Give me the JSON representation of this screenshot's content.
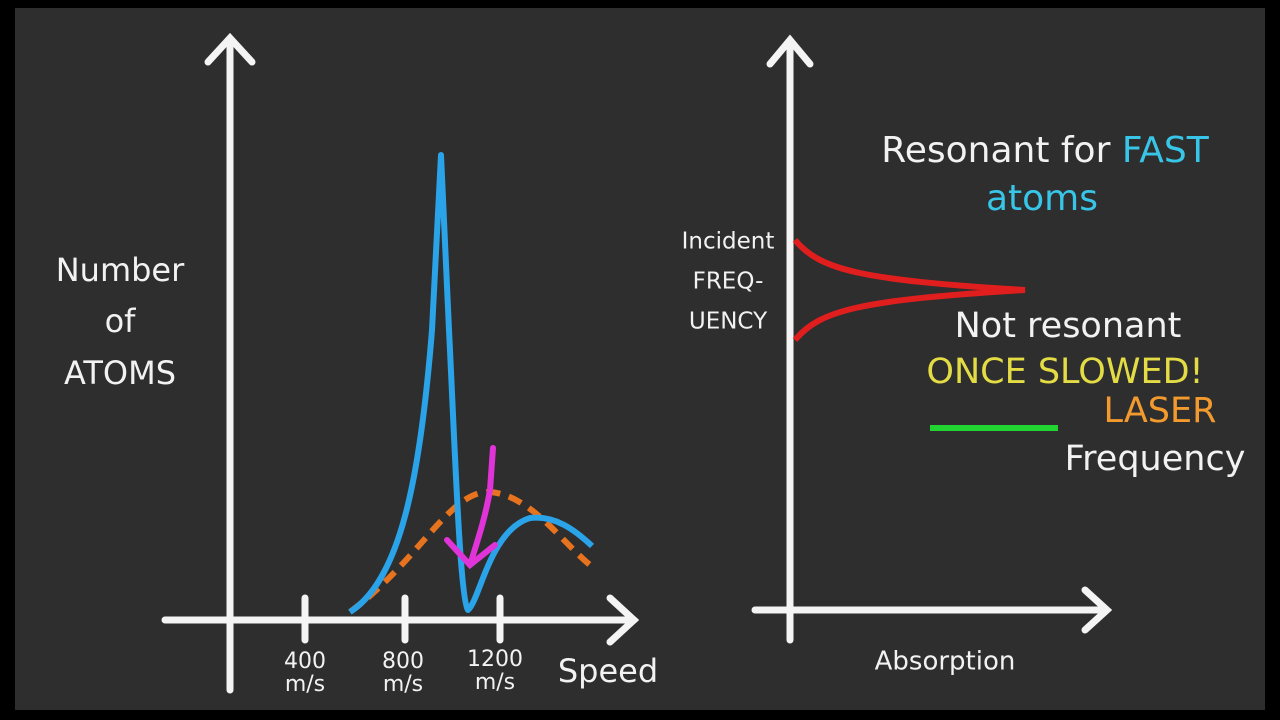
{
  "left_plot": {
    "y_axis_label": [
      "Number",
      "of",
      "ATOMS"
    ],
    "x_ticks": [
      {
        "number": "400",
        "unit": "m/s"
      },
      {
        "number": "800",
        "unit": "m/s"
      },
      {
        "number": "1200",
        "unit": "m/s"
      }
    ],
    "x_axis_label": "Speed"
  },
  "right_plot": {
    "y_axis_label": [
      "Incident",
      "FREQ-",
      "UENCY"
    ],
    "x_axis_label": "Absorption",
    "annotations": {
      "resonant_prefix": "Resonant for",
      "resonant_highlight": "FAST",
      "resonant_suffix": "atoms",
      "not_resonant": "Not resonant",
      "once_slowed": "ONCE SLOWED!",
      "laser": "LASER",
      "frequency": "Frequency"
    }
  }
}
